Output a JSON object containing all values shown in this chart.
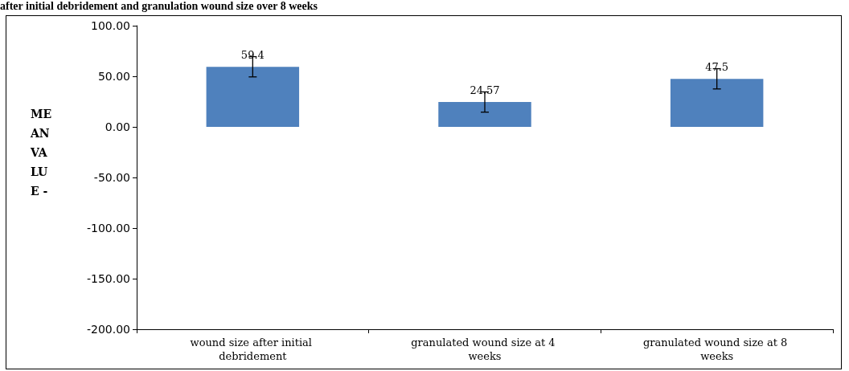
{
  "chart_data": {
    "type": "bar",
    "title": "after initial debridement and granulation wound size over 8 weeks",
    "ylabel": "MEAN VALUE -",
    "categories": [
      "wound size after initial debridement",
      "granulated wound size at 4 weeks",
      "granulated wound size at 8 weeks"
    ],
    "values": [
      59.4,
      24.57,
      47.5
    ],
    "errors": [
      10,
      10,
      10
    ],
    "color": "#4f81bd",
    "data_labels": true,
    "ylim": [
      -200,
      100
    ],
    "yticks": [
      {
        "value": -200,
        "label": "-200.00"
      },
      {
        "value": -150,
        "label": "-150.00"
      },
      {
        "value": -100,
        "label": "-100.00"
      },
      {
        "value": -50,
        "label": "-50.00"
      },
      {
        "value": 0,
        "label": "0.00"
      },
      {
        "value": 50,
        "label": "50.00"
      },
      {
        "value": 100,
        "label": "100.00"
      }
    ],
    "grid": false
  }
}
